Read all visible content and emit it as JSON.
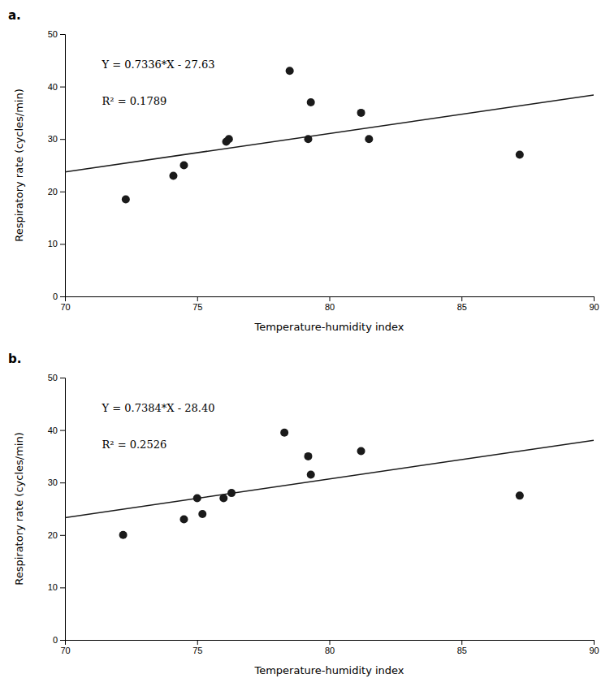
{
  "chart_data": [
    {
      "type": "scatter",
      "title": "a.",
      "xlabel": "Temperature-humidity index",
      "ylabel": "Respiratory rate (cycles/min)",
      "annotations": [
        "Y = 0.7336*X - 27.63",
        "R² = 0.1789"
      ],
      "series": [
        {
          "type": "scatter",
          "marker": "circle",
          "color": "#1a1a1a",
          "x": [
            72.3,
            74.1,
            74.5,
            76.1,
            76.2,
            78.5,
            79.2,
            79.3,
            81.2,
            81.5,
            87.2
          ],
          "values": [
            18.5,
            23.0,
            25.0,
            29.5,
            30.0,
            43.0,
            30.0,
            37.0,
            35.0,
            30.0,
            27.0
          ]
        },
        {
          "type": "line",
          "line_style": "solid",
          "color": "#1a1a1a",
          "x": [
            70,
            90
          ],
          "values": [
            23.722,
            38.394
          ]
        }
      ],
      "xlim": [
        70,
        90
      ],
      "ylim": [
        0,
        50
      ],
      "xticks": [
        70,
        75,
        80,
        85,
        90
      ],
      "yticks": [
        0,
        10,
        20,
        30,
        40,
        50
      ],
      "grid": false
    },
    {
      "type": "scatter",
      "title": "b.",
      "xlabel": "Temperature-humidity index",
      "ylabel": "Respiratory rate (cycles/min)",
      "annotations": [
        "Y = 0.7384*X - 28.40",
        "R² = 0.2526"
      ],
      "series": [
        {
          "type": "scatter",
          "marker": "circle",
          "color": "#1a1a1a",
          "x": [
            72.2,
            74.5,
            75.0,
            75.2,
            76.0,
            76.3,
            78.3,
            79.2,
            79.3,
            81.2,
            87.2
          ],
          "values": [
            20.0,
            23.0,
            27.0,
            24.0,
            27.0,
            28.0,
            39.5,
            35.0,
            31.5,
            36.0,
            27.5
          ]
        },
        {
          "type": "line",
          "line_style": "solid",
          "color": "#1a1a1a",
          "x": [
            70,
            90
          ],
          "values": [
            23.288,
            38.056
          ]
        }
      ],
      "xlim": [
        70,
        90
      ],
      "ylim": [
        0,
        50
      ],
      "xticks": [
        70,
        75,
        80,
        85,
        90
      ],
      "yticks": [
        0,
        10,
        20,
        30,
        40,
        50
      ],
      "grid": false
    }
  ]
}
